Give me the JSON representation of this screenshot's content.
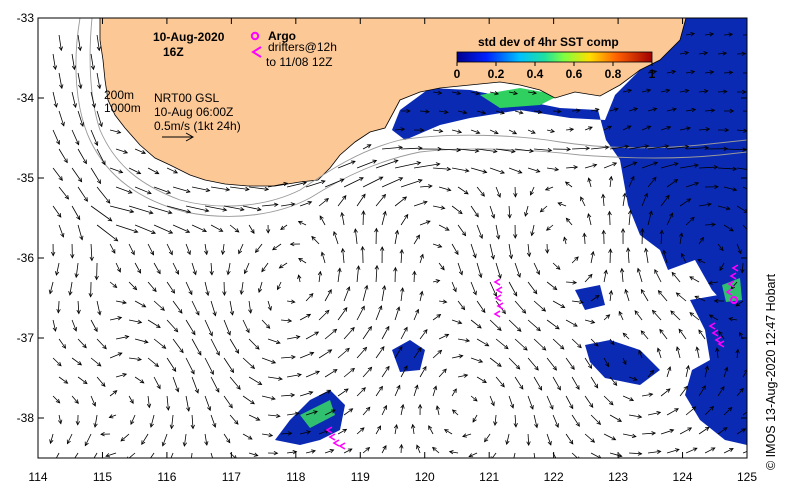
{
  "map": {
    "date": "10-Aug-2020",
    "time": "16Z",
    "legend": {
      "argo_label": "Argo",
      "drifters_label": "drifters@12h",
      "drifters_range": "to 11/08 12Z"
    },
    "info": {
      "line1": "NRT00 GSL",
      "line2": "10-Aug 06:00Z",
      "line3": "0.5m/s (1kt 24h)"
    },
    "contours": {
      "c200": "200m",
      "c1000": "1000m"
    },
    "colorbar": {
      "title": "std dev of 4hr SST comp",
      "ticks": [
        "0",
        "0.2",
        "0.4",
        "0.6",
        "0.8",
        "1"
      ],
      "range": [
        0,
        1
      ]
    },
    "lon_ticks": [
      "114",
      "115",
      "116",
      "117",
      "118",
      "119",
      "120",
      "121",
      "122",
      "123",
      "124",
      "125"
    ],
    "lat_ticks": [
      "-33",
      "-34",
      "-35",
      "-36",
      "-37",
      "-38"
    ],
    "lon_range": [
      114,
      125
    ],
    "lat_range": [
      -38.5,
      -33
    ],
    "credit": "© IMOS 13-Aug-2020 12:47 Hobart",
    "colors": {
      "land": "#fcc896",
      "ocean": "#ffffff",
      "argo": "#ff00ff",
      "drifter": "#ff00ff",
      "sst_low": "#0a2ab4"
    }
  }
}
